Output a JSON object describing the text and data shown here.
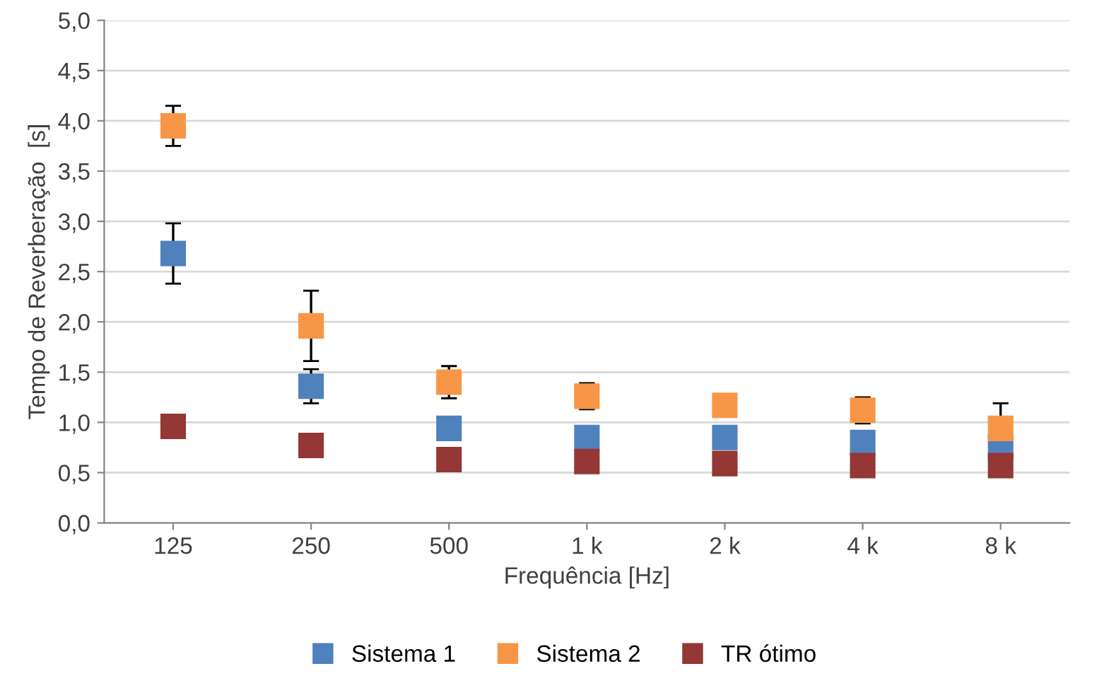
{
  "chart_data": {
    "type": "scatter",
    "xlabel": "Frequência [Hz]",
    "ylabel": "Tempo de Reverberação  [s]",
    "categories": [
      "125",
      "250",
      "500",
      "1 k",
      "2 k",
      "4 k",
      "8 k"
    ],
    "series": [
      {
        "name": "Sistema 1",
        "color": "#4f81bd",
        "values": [
          2.68,
          1.36,
          0.94,
          0.85,
          0.85,
          0.8,
          0.76
        ],
        "errors": [
          0.3,
          0.17,
          null,
          null,
          null,
          null,
          null
        ]
      },
      {
        "name": "Sistema 2",
        "color": "#f79646",
        "values": [
          3.95,
          1.96,
          1.4,
          1.26,
          1.17,
          1.12,
          0.94
        ],
        "errors": [
          0.2,
          0.35,
          0.16,
          0.13,
          null,
          0.13,
          0.25
        ]
      },
      {
        "name": "TR ótimo",
        "color": "#953735",
        "values": [
          0.96,
          0.77,
          0.63,
          0.61,
          0.59,
          0.57,
          0.57
        ]
      }
    ],
    "ylim": [
      0,
      5
    ],
    "yticks": [
      {
        "value": 0,
        "label": "0,0"
      },
      {
        "value": 0.5,
        "label": "0,5"
      },
      {
        "value": 1,
        "label": "1,0"
      },
      {
        "value": 1.5,
        "label": "1,5"
      },
      {
        "value": 2,
        "label": "2,0"
      },
      {
        "value": 2.5,
        "label": "2,5"
      },
      {
        "value": 3,
        "label": "3,0"
      },
      {
        "value": 3.5,
        "label": "3,5"
      },
      {
        "value": 4,
        "label": "4,0"
      },
      {
        "value": 4.5,
        "label": "4,5"
      },
      {
        "value": 5,
        "label": "5,0"
      }
    ],
    "grid": "y",
    "legend": "bottom",
    "marker": "square"
  }
}
